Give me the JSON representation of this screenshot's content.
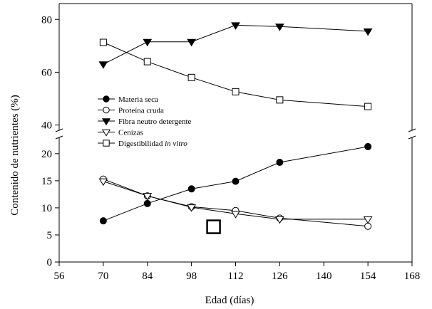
{
  "chart_data": {
    "type": "line",
    "title": "",
    "xlabel": "Edad (días)",
    "ylabel": "Contenido de nutrientes (%)",
    "x_ticks": [
      56,
      70,
      84,
      98,
      112,
      126,
      140,
      154,
      168
    ],
    "x_range": [
      56,
      168
    ],
    "upper_panel": {
      "y_range": [
        38,
        86
      ],
      "y_ticks": [
        40,
        60,
        80
      ]
    },
    "lower_panel": {
      "y_range": [
        0,
        23
      ],
      "y_ticks": [
        0,
        5,
        10,
        15,
        20
      ]
    },
    "legend_placement": "center-left",
    "grid": false,
    "axis_break": true,
    "series": [
      {
        "name": "Materia seca",
        "marker": "filled-circle",
        "panel": "lower",
        "points": [
          [
            70,
            7.6
          ],
          [
            84,
            10.8
          ],
          [
            98,
            13.5
          ],
          [
            112,
            14.9
          ],
          [
            126,
            18.4
          ],
          [
            154,
            21.3
          ]
        ]
      },
      {
        "name": "Proteína cruda",
        "marker": "open-circle",
        "panel": "lower",
        "points": [
          [
            70,
            15.3
          ],
          [
            84,
            12.2
          ],
          [
            98,
            10.2
          ],
          [
            112,
            9.5
          ],
          [
            126,
            8.1
          ],
          [
            154,
            6.6
          ]
        ]
      },
      {
        "name": "Fibra neutro detergente",
        "marker": "filled-triangle-down",
        "panel": "upper",
        "points": [
          [
            70,
            63.0
          ],
          [
            84,
            71.5
          ],
          [
            98,
            71.5
          ],
          [
            112,
            77.8
          ],
          [
            126,
            77.3
          ],
          [
            154,
            75.5
          ]
        ]
      },
      {
        "name": "Cenizas",
        "marker": "open-triangle-down",
        "panel": "lower",
        "points": [
          [
            70,
            14.9
          ],
          [
            84,
            12.2
          ],
          [
            98,
            10.1
          ],
          [
            112,
            8.9
          ],
          [
            126,
            7.9
          ],
          [
            154,
            7.9
          ]
        ]
      },
      {
        "name": "Digestibilidad in vitro",
        "name_plain": "Digestibilidad ",
        "name_italic": "in vitro",
        "marker": "open-square",
        "panel": "upper",
        "points": [
          [
            70,
            71.3
          ],
          [
            84,
            64.0
          ],
          [
            98,
            58.0
          ],
          [
            112,
            52.6
          ],
          [
            126,
            49.5
          ],
          [
            154,
            47.0
          ]
        ]
      }
    ],
    "stray_marker": {
      "shape": "open-square-large",
      "x": 105,
      "y": 6.5
    }
  }
}
